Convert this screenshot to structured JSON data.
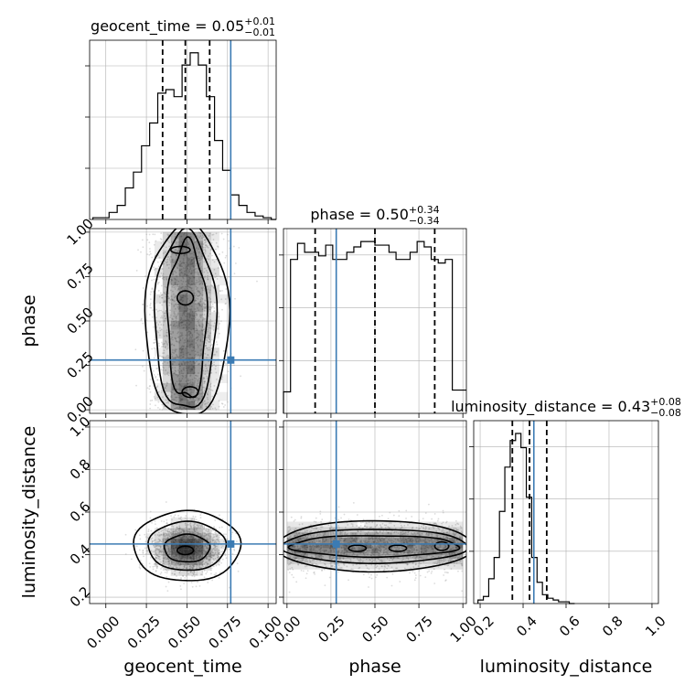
{
  "chart_data": {
    "type": "corner",
    "parameters": [
      {
        "key": "geocent_time",
        "label": "geocent_time",
        "range": [
          -0.01,
          0.105
        ],
        "ticks": [
          "0.000",
          "0.025",
          "0.050",
          "0.075",
          "0.100"
        ],
        "tick_values": [
          0.0,
          0.025,
          0.05,
          0.075,
          0.1
        ],
        "truth": 0.077,
        "quantiles": [
          0.035,
          0.049,
          0.064
        ],
        "title": {
          "prefix": "geocent_time = ",
          "median": "0.05",
          "plus": "+0.01",
          "minus": "−0.01"
        },
        "hist": {
          "edges_start": -0.008,
          "bin_width": 0.005,
          "counts": [
            1,
            1,
            4,
            8,
            18,
            27,
            42,
            55,
            72,
            74,
            70,
            88,
            95,
            88,
            70,
            45,
            28,
            14,
            8,
            4,
            2,
            1,
            0
          ]
        },
        "cov_sigma": 0.01
      },
      {
        "key": "phase",
        "label": "phase",
        "range": [
          -0.02,
          1.02
        ],
        "ticks": [
          "0.00",
          "0.25",
          "0.50",
          "0.75",
          "1.00"
        ],
        "tick_values": [
          0.0,
          0.25,
          0.5,
          0.75,
          1.0
        ],
        "truth": 0.28,
        "quantiles": [
          0.16,
          0.5,
          0.84
        ],
        "title": {
          "prefix": "phase = ",
          "median": "0.50",
          "plus": "+0.34",
          "minus": "−0.34"
        },
        "hist": {
          "edges_start": -0.02,
          "bin_width": 0.04,
          "counts": [
            12,
            86,
            95,
            90,
            90,
            88,
            94,
            86,
            86,
            90,
            93,
            96,
            96,
            94,
            94,
            90,
            86,
            86,
            90,
            96,
            93,
            86,
            84,
            86,
            13,
            13
          ]
        }
      },
      {
        "key": "luminosity_distance",
        "label": "luminosity_distance",
        "range": [
          0.17,
          1.03
        ],
        "ticks": [
          "0.2",
          "0.4",
          "0.6",
          "0.8",
          "1.0"
        ],
        "tick_values": [
          0.2,
          0.4,
          0.6,
          0.8,
          1.0
        ],
        "truth": 0.45,
        "quantiles": [
          0.35,
          0.43,
          0.51
        ],
        "title": {
          "prefix": "luminosity_distance = ",
          "median": "0.43",
          "plus": "+0.08",
          "minus": "−0.08"
        },
        "hist": {
          "edges_start": 0.19,
          "bin_width": 0.025,
          "counts": [
            2,
            4,
            14,
            26,
            52,
            77,
            92,
            96,
            88,
            60,
            26,
            12,
            5,
            3,
            2,
            1,
            1,
            0
          ]
        }
      }
    ],
    "pairs": [
      {
        "x": "geocent_time",
        "y": "phase"
      },
      {
        "x": "geocent_time",
        "y": "luminosity_distance"
      },
      {
        "x": "phase",
        "y": "luminosity_distance"
      }
    ],
    "grid": true,
    "truth_color": "#3b7bb3",
    "contour_color": "#000000"
  }
}
